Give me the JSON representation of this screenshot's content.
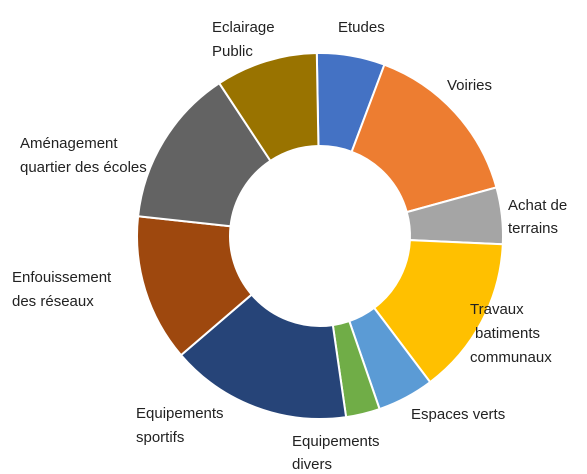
{
  "chart_data": {
    "type": "donut",
    "categories": [
      [
        "Etudes"
      ],
      [
        "Voiries"
      ],
      [
        "Achat de",
        "terrains"
      ],
      [
        "Travaux",
        "batiments",
        "communaux"
      ],
      [
        "Espaces verts"
      ],
      [
        "Equipements",
        "divers"
      ],
      [
        "Equipements",
        "sportifs"
      ],
      [
        "Enfouissement",
        "des réseaux"
      ],
      [
        "Aménagement",
        "quartier des écoles"
      ],
      [
        "Eclairage",
        "Public"
      ]
    ],
    "values": [
      6,
      15,
      5,
      14,
      5,
      3,
      16,
      13,
      14,
      9
    ],
    "colors": [
      "#4472c4",
      "#ed7d31",
      "#a5a5a5",
      "#ffc000",
      "#5b9bd5",
      "#70ad47",
      "#264478",
      "#9e480e",
      "#636363",
      "#997300"
    ]
  }
}
